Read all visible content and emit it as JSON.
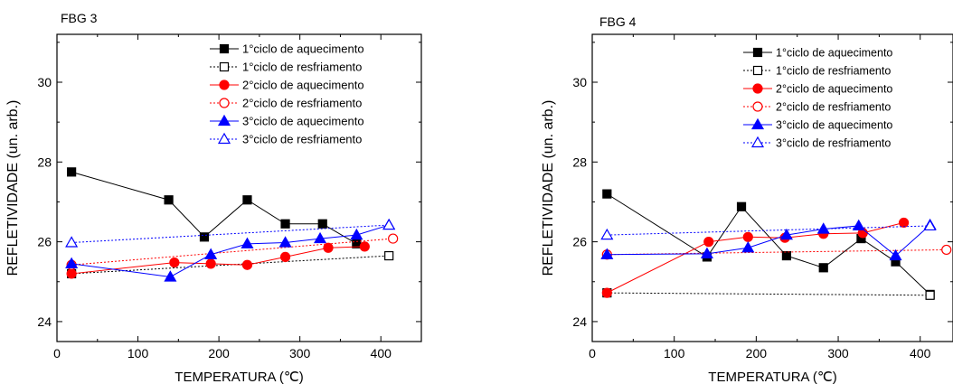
{
  "chart_data": [
    {
      "type": "line",
      "title": "FBG 3",
      "xlabel": "TEMPERATURA (℃)",
      "ylabel": "REFLETIVIDADE (un. arb.)",
      "xlim": [
        0,
        450
      ],
      "ylim": [
        23.5,
        31.2
      ],
      "xticks": [
        0,
        100,
        200,
        300,
        400
      ],
      "yticks": [
        24,
        26,
        28,
        30
      ],
      "legend_position": "top-right",
      "series": [
        {
          "name": "1°ciclo de aquecimento",
          "color": "#000000",
          "line": "solid",
          "marker": "square",
          "filled": true,
          "x": [
            18,
            138,
            182,
            235,
            282,
            328,
            370
          ],
          "y": [
            27.75,
            27.05,
            26.12,
            27.05,
            26.45,
            26.45,
            25.95
          ]
        },
        {
          "name": "1°ciclo de resfriamento",
          "color": "#000000",
          "line": "dotted",
          "marker": "square",
          "filled": false,
          "x": [
            18,
            410
          ],
          "y": [
            25.2,
            25.65
          ]
        },
        {
          "name": "2°ciclo de aquecimento",
          "color": "#ff0000",
          "line": "solid",
          "marker": "circle",
          "filled": true,
          "x": [
            18,
            145,
            190,
            235,
            282,
            335,
            380
          ],
          "y": [
            25.2,
            25.48,
            25.45,
            25.42,
            25.62,
            25.85,
            25.88
          ]
        },
        {
          "name": "2°ciclo de resfriamento",
          "color": "#ff0000",
          "line": "dotted",
          "marker": "circle",
          "filled": false,
          "x": [
            18,
            415
          ],
          "y": [
            25.42,
            26.08
          ]
        },
        {
          "name": "3°ciclo de aquecimento",
          "color": "#0000ff",
          "line": "solid",
          "marker": "triangle",
          "filled": true,
          "x": [
            18,
            140,
            190,
            235,
            282,
            325,
            370,
            410
          ],
          "y": [
            25.45,
            25.12,
            25.68,
            25.95,
            25.98,
            26.08,
            26.17,
            26.42
          ]
        },
        {
          "name": "3°ciclo de resfriamento",
          "color": "#0000ff",
          "line": "dotted",
          "marker": "triangle",
          "filled": false,
          "x": [
            18,
            410
          ],
          "y": [
            25.98,
            26.42
          ]
        }
      ]
    },
    {
      "type": "line",
      "title": "FBG 4",
      "xlabel": "TEMPERATURA (℃)",
      "ylabel": "REFLETIVIDADE (un. arb.)",
      "xlim": [
        0,
        440
      ],
      "ylim": [
        23.5,
        31.2
      ],
      "xticks": [
        0,
        100,
        200,
        300,
        400
      ],
      "yticks": [
        24,
        26,
        28,
        30
      ],
      "legend_position": "top-right",
      "series": [
        {
          "name": "1°ciclo de aquecimento",
          "color": "#000000",
          "line": "solid",
          "marker": "square",
          "filled": true,
          "x": [
            18,
            140,
            182,
            237,
            282,
            328,
            370,
            412
          ],
          "y": [
            27.2,
            25.62,
            26.88,
            25.65,
            25.35,
            26.08,
            25.5,
            24.68
          ]
        },
        {
          "name": "1°ciclo de resfriamento",
          "color": "#000000",
          "line": "dotted",
          "marker": "square",
          "filled": false,
          "x": [
            18,
            412
          ],
          "y": [
            24.72,
            24.66
          ]
        },
        {
          "name": "2°ciclo de aquecimento",
          "color": "#ff0000",
          "line": "solid",
          "marker": "circle",
          "filled": true,
          "x": [
            18,
            142,
            190,
            235,
            282,
            330,
            380
          ],
          "y": [
            24.72,
            26.0,
            26.12,
            26.1,
            26.2,
            26.22,
            26.48
          ]
        },
        {
          "name": "2°ciclo de resfriamento",
          "color": "#ff0000",
          "line": "dotted",
          "marker": "circle",
          "filled": false,
          "x": [
            18,
            432
          ],
          "y": [
            25.68,
            25.8
          ]
        },
        {
          "name": "3°ciclo de aquecimento",
          "color": "#0000ff",
          "line": "solid",
          "marker": "triangle",
          "filled": true,
          "x": [
            18,
            140,
            190,
            237,
            282,
            325,
            370,
            412
          ],
          "y": [
            25.68,
            25.7,
            25.85,
            26.17,
            26.32,
            26.4,
            25.65,
            26.42
          ]
        },
        {
          "name": "3°ciclo de resfriamento",
          "color": "#0000ff",
          "line": "dotted",
          "marker": "triangle",
          "filled": false,
          "x": [
            18,
            412
          ],
          "y": [
            26.17,
            26.4
          ]
        }
      ]
    }
  ]
}
